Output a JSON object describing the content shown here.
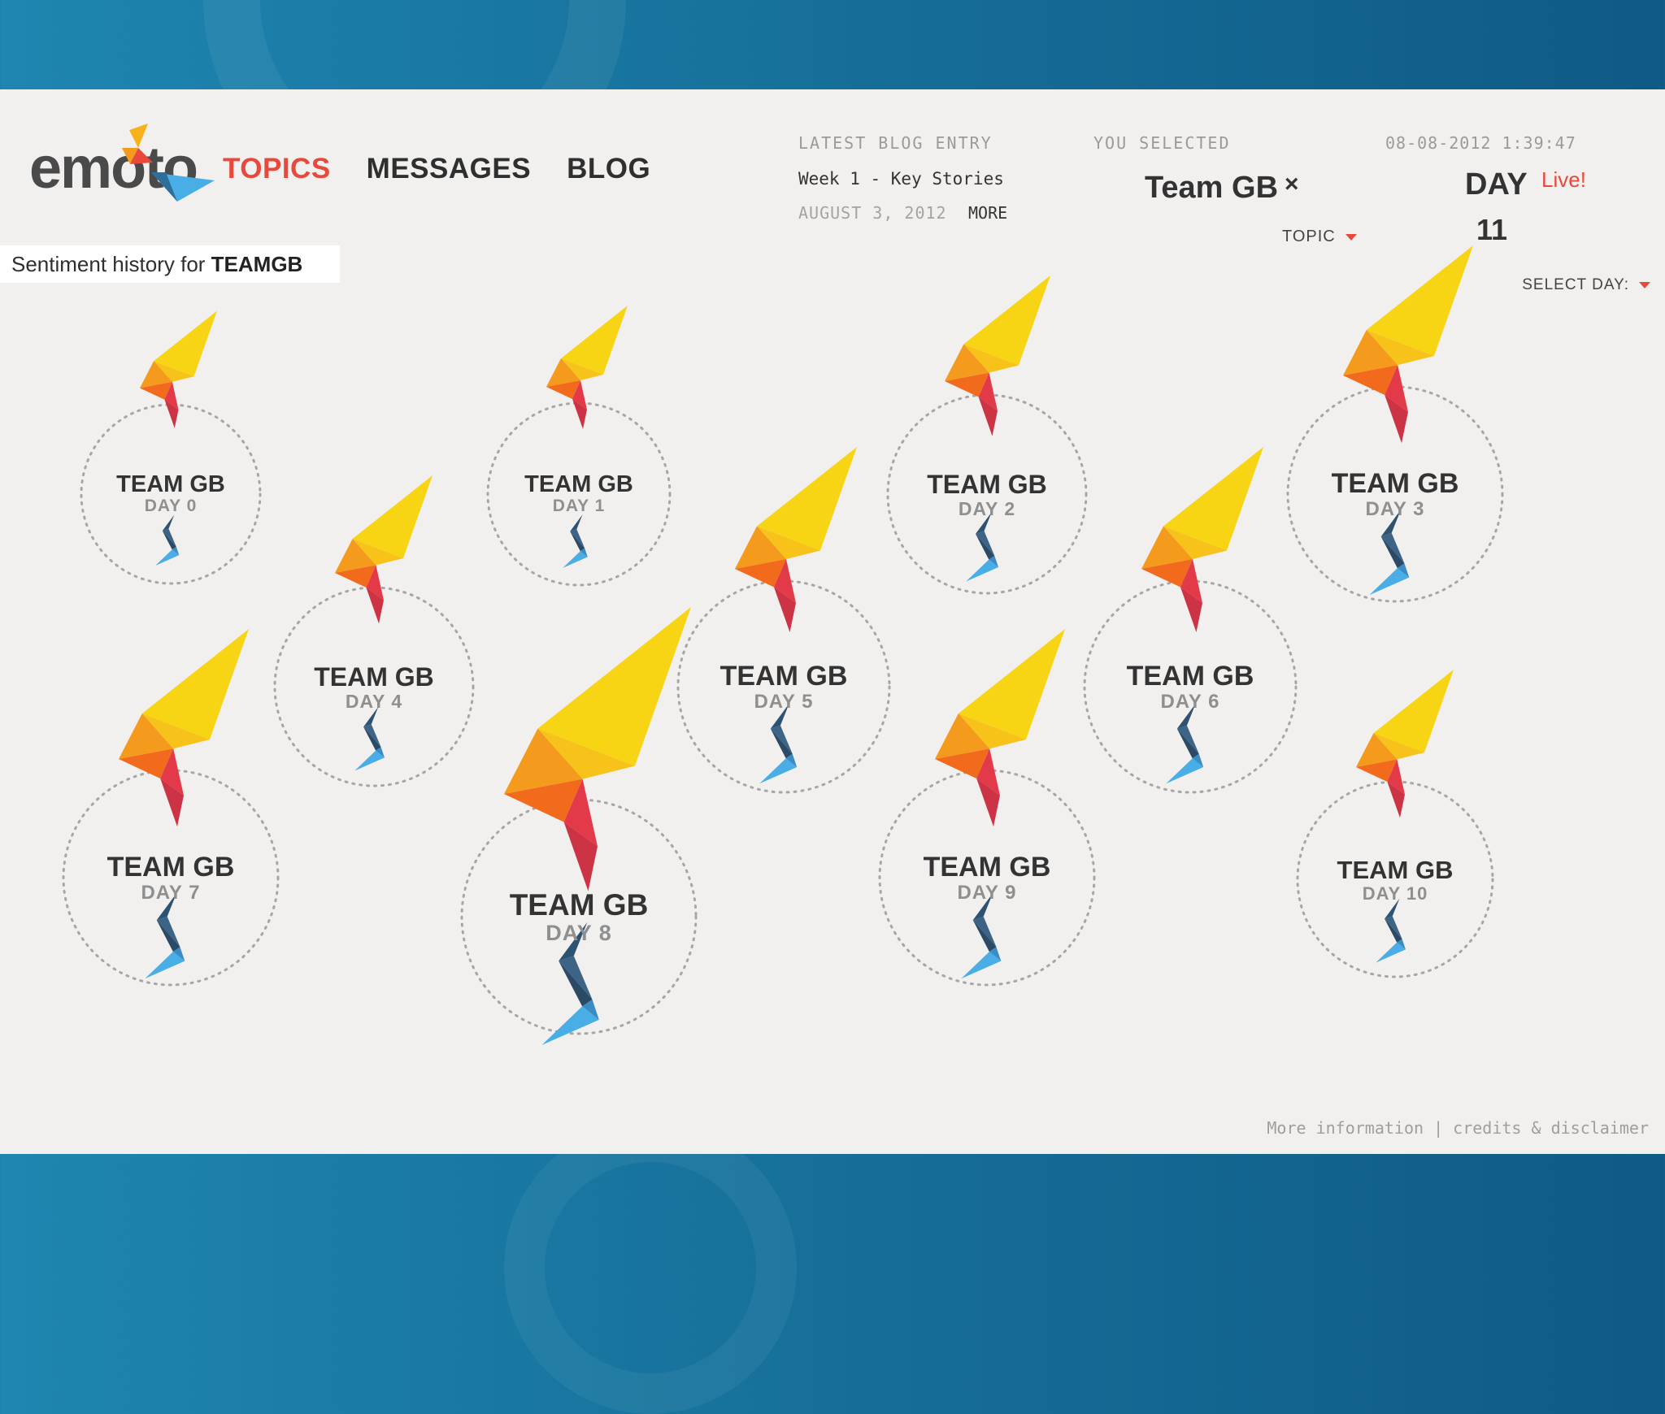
{
  "app": {
    "logo_text": "emoto"
  },
  "nav": {
    "items": [
      "TOPICS",
      "MESSAGES",
      "BLOG"
    ],
    "active": "TOPICS"
  },
  "blog": {
    "heading": "LATEST BLOG ENTRY",
    "title": "Week 1 - Key Stories",
    "date": "AUGUST 3, 2012",
    "more": "MORE"
  },
  "selection": {
    "heading": "YOU SELECTED",
    "topic": "Team GB",
    "close": "×",
    "topic_dropdown": "TOPIC"
  },
  "status": {
    "datetime": "08-08-2012 1:39:47",
    "day_label": "DAY",
    "live": "Live!",
    "day_number": "11",
    "select_day": "SELECT DAY:"
  },
  "sentiment": {
    "prefix": "Sentiment history for ",
    "topic": "TEAMGB"
  },
  "bubbles": [
    {
      "title": "TEAM GB",
      "day": "DAY 0"
    },
    {
      "title": "TEAM GB",
      "day": "DAY 1"
    },
    {
      "title": "TEAM GB",
      "day": "DAY 2"
    },
    {
      "title": "TEAM GB",
      "day": "DAY 3"
    },
    {
      "title": "TEAM GB",
      "day": "DAY 4"
    },
    {
      "title": "TEAM GB",
      "day": "DAY 5"
    },
    {
      "title": "TEAM GB",
      "day": "DAY 6"
    },
    {
      "title": "TEAM GB",
      "day": "DAY 7"
    },
    {
      "title": "TEAM GB",
      "day": "DAY 8"
    },
    {
      "title": "TEAM GB",
      "day": "DAY 9"
    },
    {
      "title": "TEAM GB",
      "day": "DAY 10"
    }
  ],
  "footer": {
    "more_info": "More information",
    "separator": "|",
    "credits": "credits & disclaimer"
  },
  "colors": {
    "accent": "#e8493a",
    "positive_yellow": "#f7d515",
    "positive_orange": "#f49a1c",
    "neutral_red": "#e23a48",
    "negative_dark": "#2e5272",
    "negative_light": "#4aaee6"
  }
}
